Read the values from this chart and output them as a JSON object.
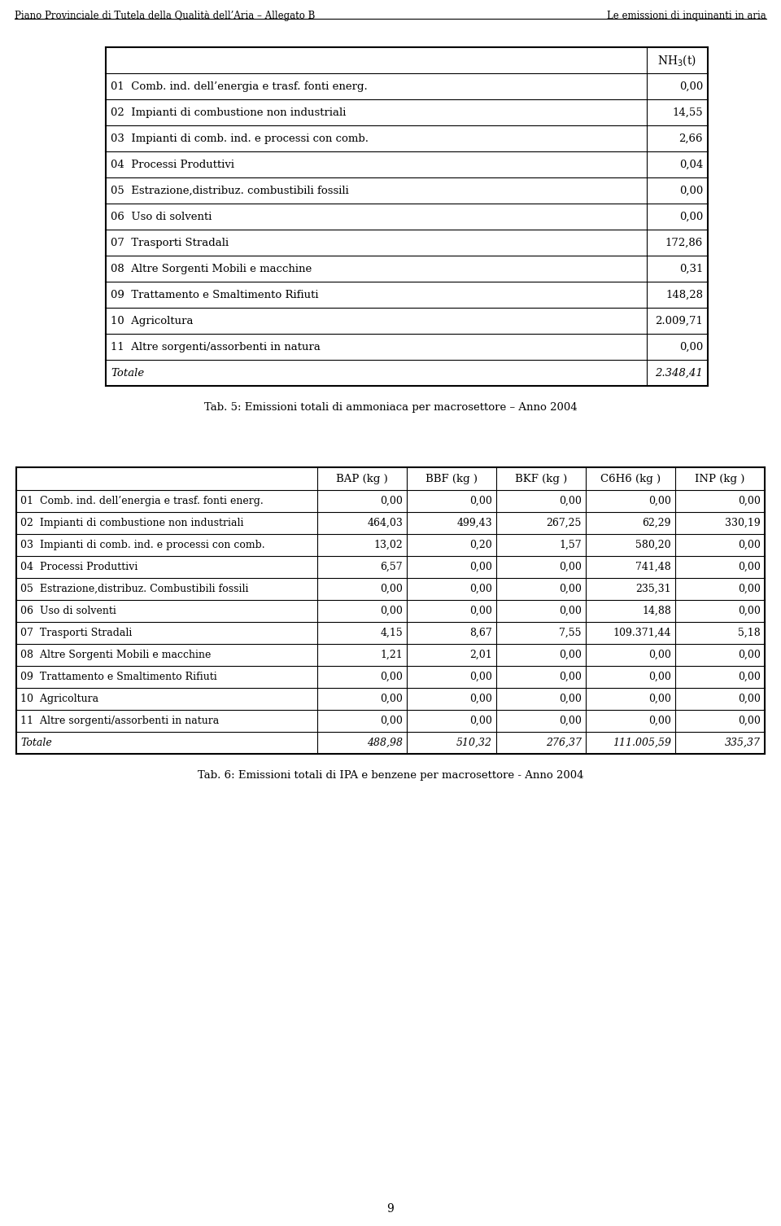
{
  "header_left": "Piano Provinciale di Tutela della Qualità dell’Aria – Allegato B",
  "header_right": "Le emissioni di inquinanti in aria",
  "page_number": "9",
  "table1_title_col2": "NH$_3$(t)",
  "table1_rows": [
    [
      "01  Comb. ind. dell’energia e trasf. fonti energ.",
      "0,00"
    ],
    [
      "02  Impianti di combustione non industriali",
      "14,55"
    ],
    [
      "03  Impianti di comb. ind. e processi con comb.",
      "2,66"
    ],
    [
      "04  Processi Produttivi",
      "0,04"
    ],
    [
      "05  Estrazione,distribuz. combustibili fossili",
      "0,00"
    ],
    [
      "06  Uso di solventi",
      "0,00"
    ],
    [
      "07  Trasporti Stradali",
      "172,86"
    ],
    [
      "08  Altre Sorgenti Mobili e macchine",
      "0,31"
    ],
    [
      "09  Trattamento e Smaltimento Rifiuti",
      "148,28"
    ],
    [
      "10  Agricoltura",
      "2.009,71"
    ],
    [
      "11  Altre sorgenti/assorbenti in natura",
      "0,00"
    ],
    [
      "Totale",
      "2.348,41"
    ]
  ],
  "table1_caption": "Tab. 5: Emissioni totali di ammoniaca per macrosettore – Anno 2004",
  "table2_headers": [
    "BAP (kg )",
    "BBF (kg )",
    "BKF (kg )",
    "C6H6 (kg )",
    "INP (kg )"
  ],
  "table2_rows": [
    [
      "01  Comb. ind. dell’energia e trasf. fonti energ.",
      "0,00",
      "0,00",
      "0,00",
      "0,00",
      "0,00"
    ],
    [
      "02  Impianti di combustione non industriali",
      "464,03",
      "499,43",
      "267,25",
      "62,29",
      "330,19"
    ],
    [
      "03  Impianti di comb. ind. e processi con comb.",
      "13,02",
      "0,20",
      "1,57",
      "580,20",
      "0,00"
    ],
    [
      "04  Processi Produttivi",
      "6,57",
      "0,00",
      "0,00",
      "741,48",
      "0,00"
    ],
    [
      "05  Estrazione,distribuz. Combustibili fossili",
      "0,00",
      "0,00",
      "0,00",
      "235,31",
      "0,00"
    ],
    [
      "06  Uso di solventi",
      "0,00",
      "0,00",
      "0,00",
      "14,88",
      "0,00"
    ],
    [
      "07  Trasporti Stradali",
      "4,15",
      "8,67",
      "7,55",
      "109.371,44",
      "5,18"
    ],
    [
      "08  Altre Sorgenti Mobili e macchine",
      "1,21",
      "2,01",
      "0,00",
      "0,00",
      "0,00"
    ],
    [
      "09  Trattamento e Smaltimento Rifiuti",
      "0,00",
      "0,00",
      "0,00",
      "0,00",
      "0,00"
    ],
    [
      "10  Agricoltura",
      "0,00",
      "0,00",
      "0,00",
      "0,00",
      "0,00"
    ],
    [
      "11  Altre sorgenti/assorbenti in natura",
      "0,00",
      "0,00",
      "0,00",
      "0,00",
      "0,00"
    ],
    [
      "Totale",
      "488,98",
      "510,32",
      "276,37",
      "111.005,59",
      "335,37"
    ]
  ],
  "table2_caption": "Tab. 6: Emissioni totali di IPA e benzene per macrosettore - Anno 2004",
  "bg_color": "#ffffff",
  "text_color": "#000000"
}
